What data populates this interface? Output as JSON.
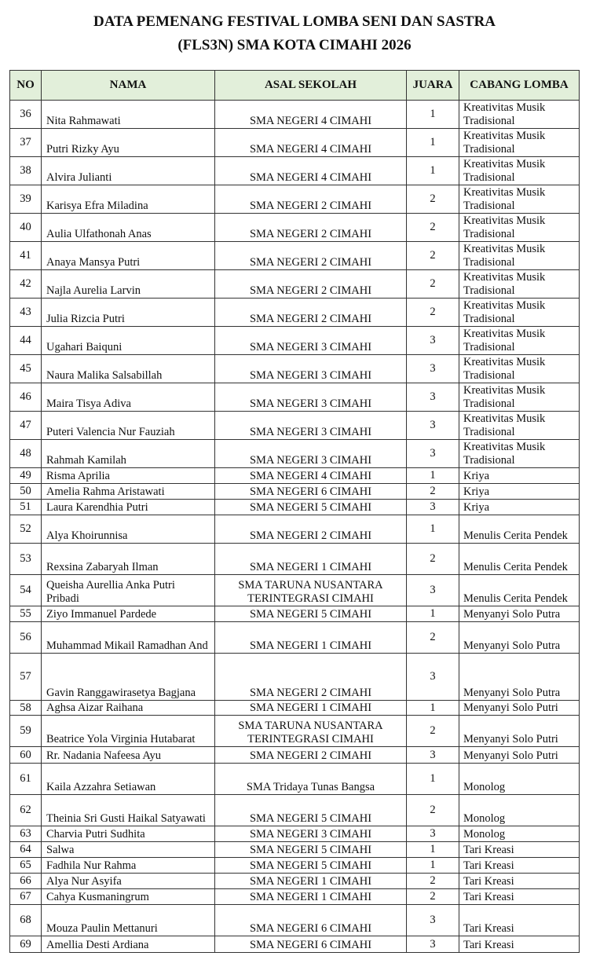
{
  "title": {
    "line1": "DATA PEMENANG FESTIVAL LOMBA SENI DAN SASTRA",
    "line2": "(FLS3N) SMA KOTA CIMAHI 2026"
  },
  "header_color": "#e2efda",
  "columns": [
    "NO",
    "NAMA",
    "ASAL SEKOLAH",
    "JUARA",
    "CABANG LOMBA"
  ],
  "rows": [
    {
      "no": "36",
      "nama": "Nita Rahmawati",
      "sekolah": "SMA NEGERI 4 CIMAHI",
      "juara": "1",
      "cabang": "Kreativitas Musik Tradisional"
    },
    {
      "no": "37",
      "nama": "Putri Rizky Ayu",
      "sekolah": "SMA NEGERI 4 CIMAHI",
      "juara": "1",
      "cabang": "Kreativitas Musik Tradisional"
    },
    {
      "no": "38",
      "nama": "Alvira Julianti",
      "sekolah": "SMA NEGERI 4 CIMAHI",
      "juara": "1",
      "cabang": "Kreativitas Musik Tradisional"
    },
    {
      "no": "39",
      "nama": "Karisya Efra Miladina",
      "sekolah": "SMA NEGERI 2 CIMAHI",
      "juara": "2",
      "cabang": "Kreativitas Musik Tradisional"
    },
    {
      "no": "40",
      "nama": "Aulia Ulfathonah Anas",
      "sekolah": "SMA NEGERI 2 CIMAHI",
      "juara": "2",
      "cabang": "Kreativitas Musik Tradisional"
    },
    {
      "no": "41",
      "nama": "Anaya Mansya Putri",
      "sekolah": "SMA NEGERI 2 CIMAHI",
      "juara": "2",
      "cabang": "Kreativitas Musik Tradisional"
    },
    {
      "no": "42",
      "nama": "Najla Aurelia Larvin",
      "sekolah": "SMA NEGERI 2 CIMAHI",
      "juara": "2",
      "cabang": "Kreativitas Musik Tradisional"
    },
    {
      "no": "43",
      "nama": "Julia Rizcia Putri",
      "sekolah": "SMA NEGERI 2 CIMAHI",
      "juara": "2",
      "cabang": "Kreativitas Musik Tradisional"
    },
    {
      "no": "44",
      "nama": "Ugahari Baiquni",
      "sekolah": "SMA NEGERI 3 CIMAHI",
      "juara": "3",
      "cabang": "Kreativitas Musik Tradisional"
    },
    {
      "no": "45",
      "nama": "Naura Malika Salsabillah",
      "sekolah": "SMA NEGERI 3 CIMAHI",
      "juara": "3",
      "cabang": "Kreativitas Musik Tradisional"
    },
    {
      "no": "46",
      "nama": "Maira Tisya Adiva",
      "sekolah": "SMA NEGERI 3 CIMAHI",
      "juara": "3",
      "cabang": "Kreativitas Musik Tradisional"
    },
    {
      "no": "47",
      "nama": "Puteri Valencia Nur Fauziah",
      "sekolah": "SMA NEGERI 3 CIMAHI",
      "juara": "3",
      "cabang": "Kreativitas Musik Tradisional"
    },
    {
      "no": "48",
      "nama": "Rahmah Kamilah",
      "sekolah": "SMA NEGERI 3 CIMAHI",
      "juara": "3",
      "cabang": "Kreativitas Musik Tradisional"
    },
    {
      "no": "49",
      "nama": "Risma Aprilia",
      "sekolah": "SMA NEGERI 4 CIMAHI",
      "juara": "1",
      "cabang": "Kriya"
    },
    {
      "no": "50",
      "nama": "Amelia Rahma Aristawati",
      "sekolah": "SMA NEGERI 6 CIMAHI",
      "juara": "2",
      "cabang": "Kriya"
    },
    {
      "no": "51",
      "nama": "Laura Karendhia Putri",
      "sekolah": "SMA NEGERI 5 CIMAHI",
      "juara": "3",
      "cabang": "Kriya"
    },
    {
      "no": "52",
      "nama": "Alya Khoirunnisa",
      "sekolah": "SMA NEGERI 2 CIMAHI",
      "juara": "1",
      "cabang": "Menulis Cerita Pendek"
    },
    {
      "no": "53",
      "nama": "Rexsina Zabaryah Ilman",
      "sekolah": "SMA NEGERI 1 CIMAHI",
      "juara": "2",
      "cabang": "Menulis Cerita Pendek"
    },
    {
      "no": "54",
      "nama": "Queisha Aurellia Anka Putri Pribadi",
      "sekolah": "SMA TARUNA NUSANTARA TERINTEGRASI CIMAHI",
      "juara": "3",
      "cabang": "Menulis Cerita Pendek"
    },
    {
      "no": "55",
      "nama": "Ziyo Immanuel Pardede",
      "sekolah": "SMA NEGERI 5 CIMAHI",
      "juara": "1",
      "cabang": "Menyanyi Solo Putra"
    },
    {
      "no": "56",
      "nama": "Muhammad Mikail Ramadhan And",
      "sekolah": "SMA NEGERI 1 CIMAHI",
      "juara": "2",
      "cabang": "Menyanyi Solo Putra"
    },
    {
      "no": "57",
      "nama": "Gavin Ranggawirasetya Bagjana",
      "sekolah": "SMA NEGERI 2 CIMAHI",
      "juara": "3",
      "cabang": "Menyanyi Solo Putra"
    },
    {
      "no": "58",
      "nama": "Aghsa Aizar Raihana",
      "sekolah": "SMA NEGERI 1 CIMAHI",
      "juara": "1",
      "cabang": "Menyanyi Solo Putri"
    },
    {
      "no": "59",
      "nama": "Beatrice Yola Virginia Hutabarat",
      "sekolah": "SMA TARUNA NUSANTARA TERINTEGRASI CIMAHI",
      "juara": "2",
      "cabang": "Menyanyi Solo Putri"
    },
    {
      "no": "60",
      "nama": "Rr. Nadania Nafeesa Ayu",
      "sekolah": "SMA NEGERI 2 CIMAHI",
      "juara": "3",
      "cabang": "Menyanyi Solo Putri"
    },
    {
      "no": "61",
      "nama": "Kaila Azzahra Setiawan",
      "sekolah": "SMA Tridaya Tunas Bangsa",
      "juara": "1",
      "cabang": "Monolog"
    },
    {
      "no": "62",
      "nama": "Theinia Sri Gusti Haikal Satyawati",
      "sekolah": "SMA NEGERI 5 CIMAHI",
      "juara": "2",
      "cabang": "Monolog"
    },
    {
      "no": "63",
      "nama": "Charvia Putri Sudhita",
      "sekolah": "SMA NEGERI 3 CIMAHI",
      "juara": "3",
      "cabang": "Monolog"
    },
    {
      "no": "64",
      "nama": "Salwa",
      "sekolah": "SMA NEGERI 5 CIMAHI",
      "juara": "1",
      "cabang": "Tari Kreasi"
    },
    {
      "no": "65",
      "nama": "Fadhila Nur Rahma",
      "sekolah": "SMA NEGERI 5 CIMAHI",
      "juara": "1",
      "cabang": "Tari Kreasi"
    },
    {
      "no": "66",
      "nama": "Alya Nur Asyifa",
      "sekolah": "SMA NEGERI 1 CIMAHI",
      "juara": "2",
      "cabang": "Tari Kreasi"
    },
    {
      "no": "67",
      "nama": "Cahya Kusmaningrum",
      "sekolah": "SMA NEGERI 1 CIMAHI",
      "juara": "2",
      "cabang": "Tari Kreasi"
    },
    {
      "no": "68",
      "nama": "Mouza Paulin Mettanuri",
      "sekolah": "SMA NEGERI 6 CIMAHI",
      "juara": "3",
      "cabang": "Tari Kreasi"
    },
    {
      "no": "69",
      "nama": "Amellia Desti Ardiana",
      "sekolah": "SMA NEGERI 6 CIMAHI",
      "juara": "3",
      "cabang": "Tari Kreasi"
    }
  ]
}
